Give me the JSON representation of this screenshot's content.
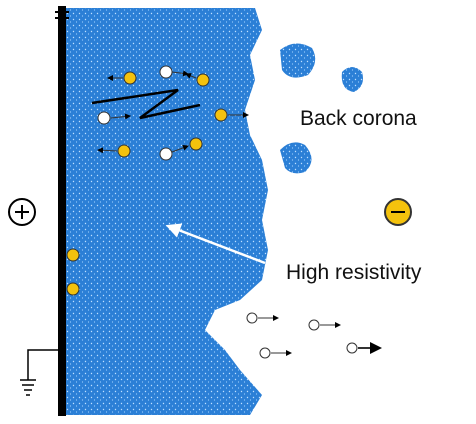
{
  "labels": {
    "back_corona": "Back corona",
    "high_resistivity": "High resistivity"
  }
}
